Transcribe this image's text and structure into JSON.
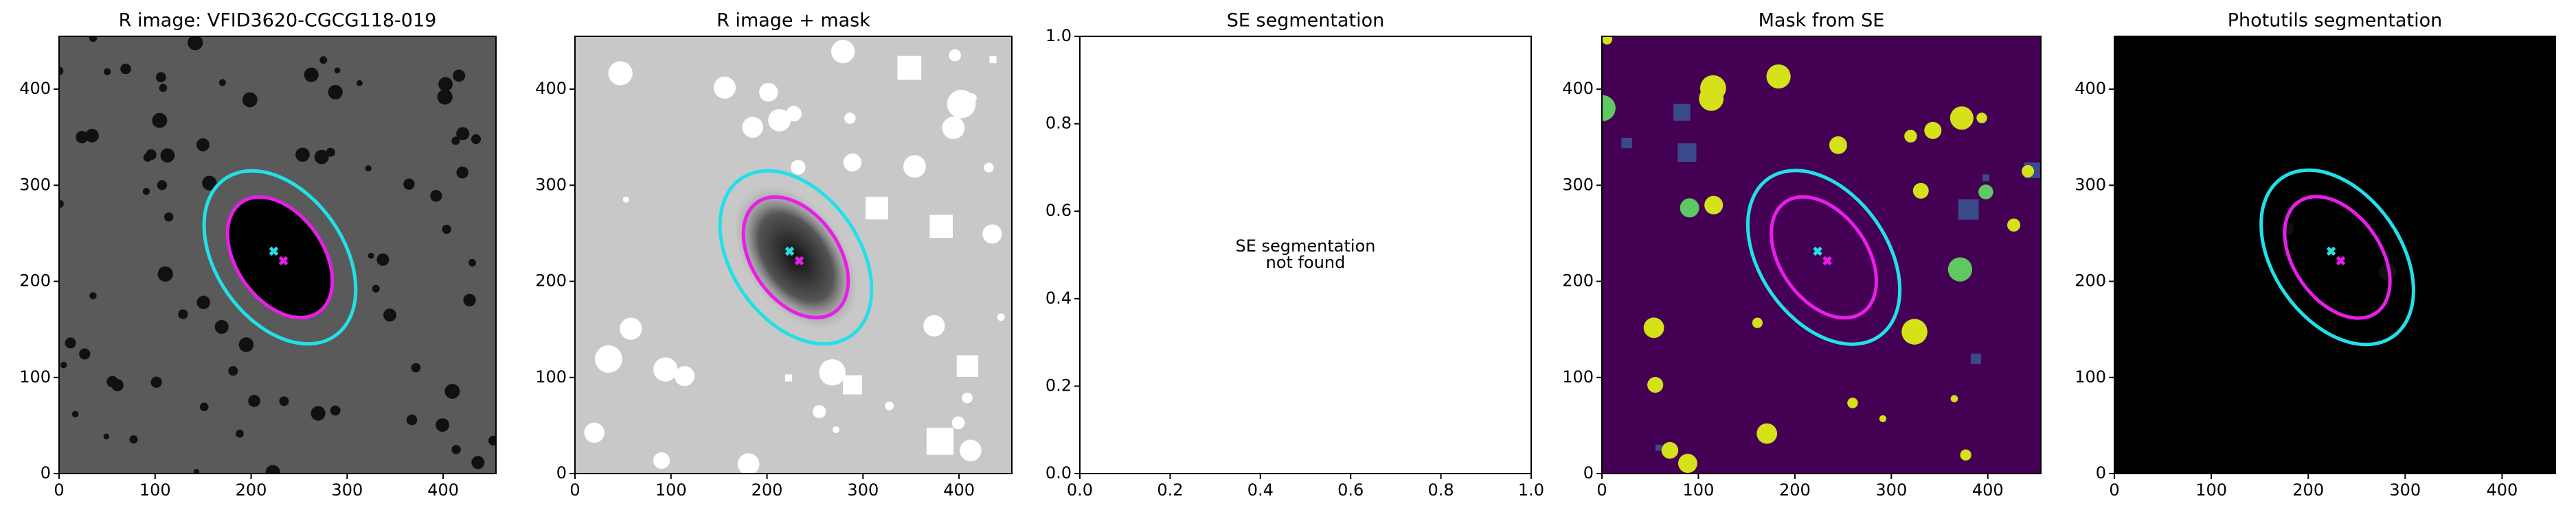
{
  "chart_data": [
    {
      "type": "image",
      "title": "R image: VFID3620-CGCG118-019",
      "style": "raw",
      "xlim": [
        0,
        455
      ],
      "ylim": [
        0,
        455
      ],
      "xticks": [
        0,
        100,
        200,
        300,
        400
      ],
      "yticks": [
        0,
        100,
        200,
        300,
        400
      ]
    },
    {
      "type": "image",
      "title": "R image + mask",
      "style": "masked",
      "xlim": [
        0,
        455
      ],
      "ylim": [
        0,
        455
      ],
      "xticks": [
        0,
        100,
        200,
        300,
        400
      ],
      "yticks": [
        0,
        100,
        200,
        300,
        400
      ]
    },
    {
      "type": "empty",
      "title": "SE segmentation",
      "annotation": [
        "SE segmentation",
        "not found"
      ],
      "xlim": [
        0,
        1
      ],
      "ylim": [
        0,
        1
      ],
      "xticks": [
        {
          "value": 0,
          "label": "0.0"
        },
        {
          "value": 0.2,
          "label": "0.2"
        },
        {
          "value": 0.4,
          "label": "0.4"
        },
        {
          "value": 0.6,
          "label": "0.6"
        },
        {
          "value": 0.8,
          "label": "0.8"
        },
        {
          "value": 1,
          "label": "1.0"
        }
      ],
      "yticks": [
        {
          "value": 0,
          "label": "0.0"
        },
        {
          "value": 0.2,
          "label": "0.2"
        },
        {
          "value": 0.4,
          "label": "0.4"
        },
        {
          "value": 0.6,
          "label": "0.6"
        },
        {
          "value": 0.8,
          "label": "0.8"
        },
        {
          "value": 1,
          "label": "1.0"
        }
      ]
    },
    {
      "type": "image",
      "title": "Mask from SE",
      "style": "segmap",
      "xlim": [
        0,
        455
      ],
      "ylim": [
        0,
        455
      ],
      "xticks": [
        0,
        100,
        200,
        300,
        400
      ],
      "yticks": [
        0,
        100,
        200,
        300,
        400
      ]
    },
    {
      "type": "image",
      "title": "Photutils segmentation",
      "style": "photutils",
      "xlim": [
        0,
        455
      ],
      "ylim": [
        0,
        455
      ],
      "xticks": [
        0,
        100,
        200,
        300,
        400
      ],
      "yticks": [
        0,
        100,
        200,
        300,
        400
      ]
    }
  ]
}
